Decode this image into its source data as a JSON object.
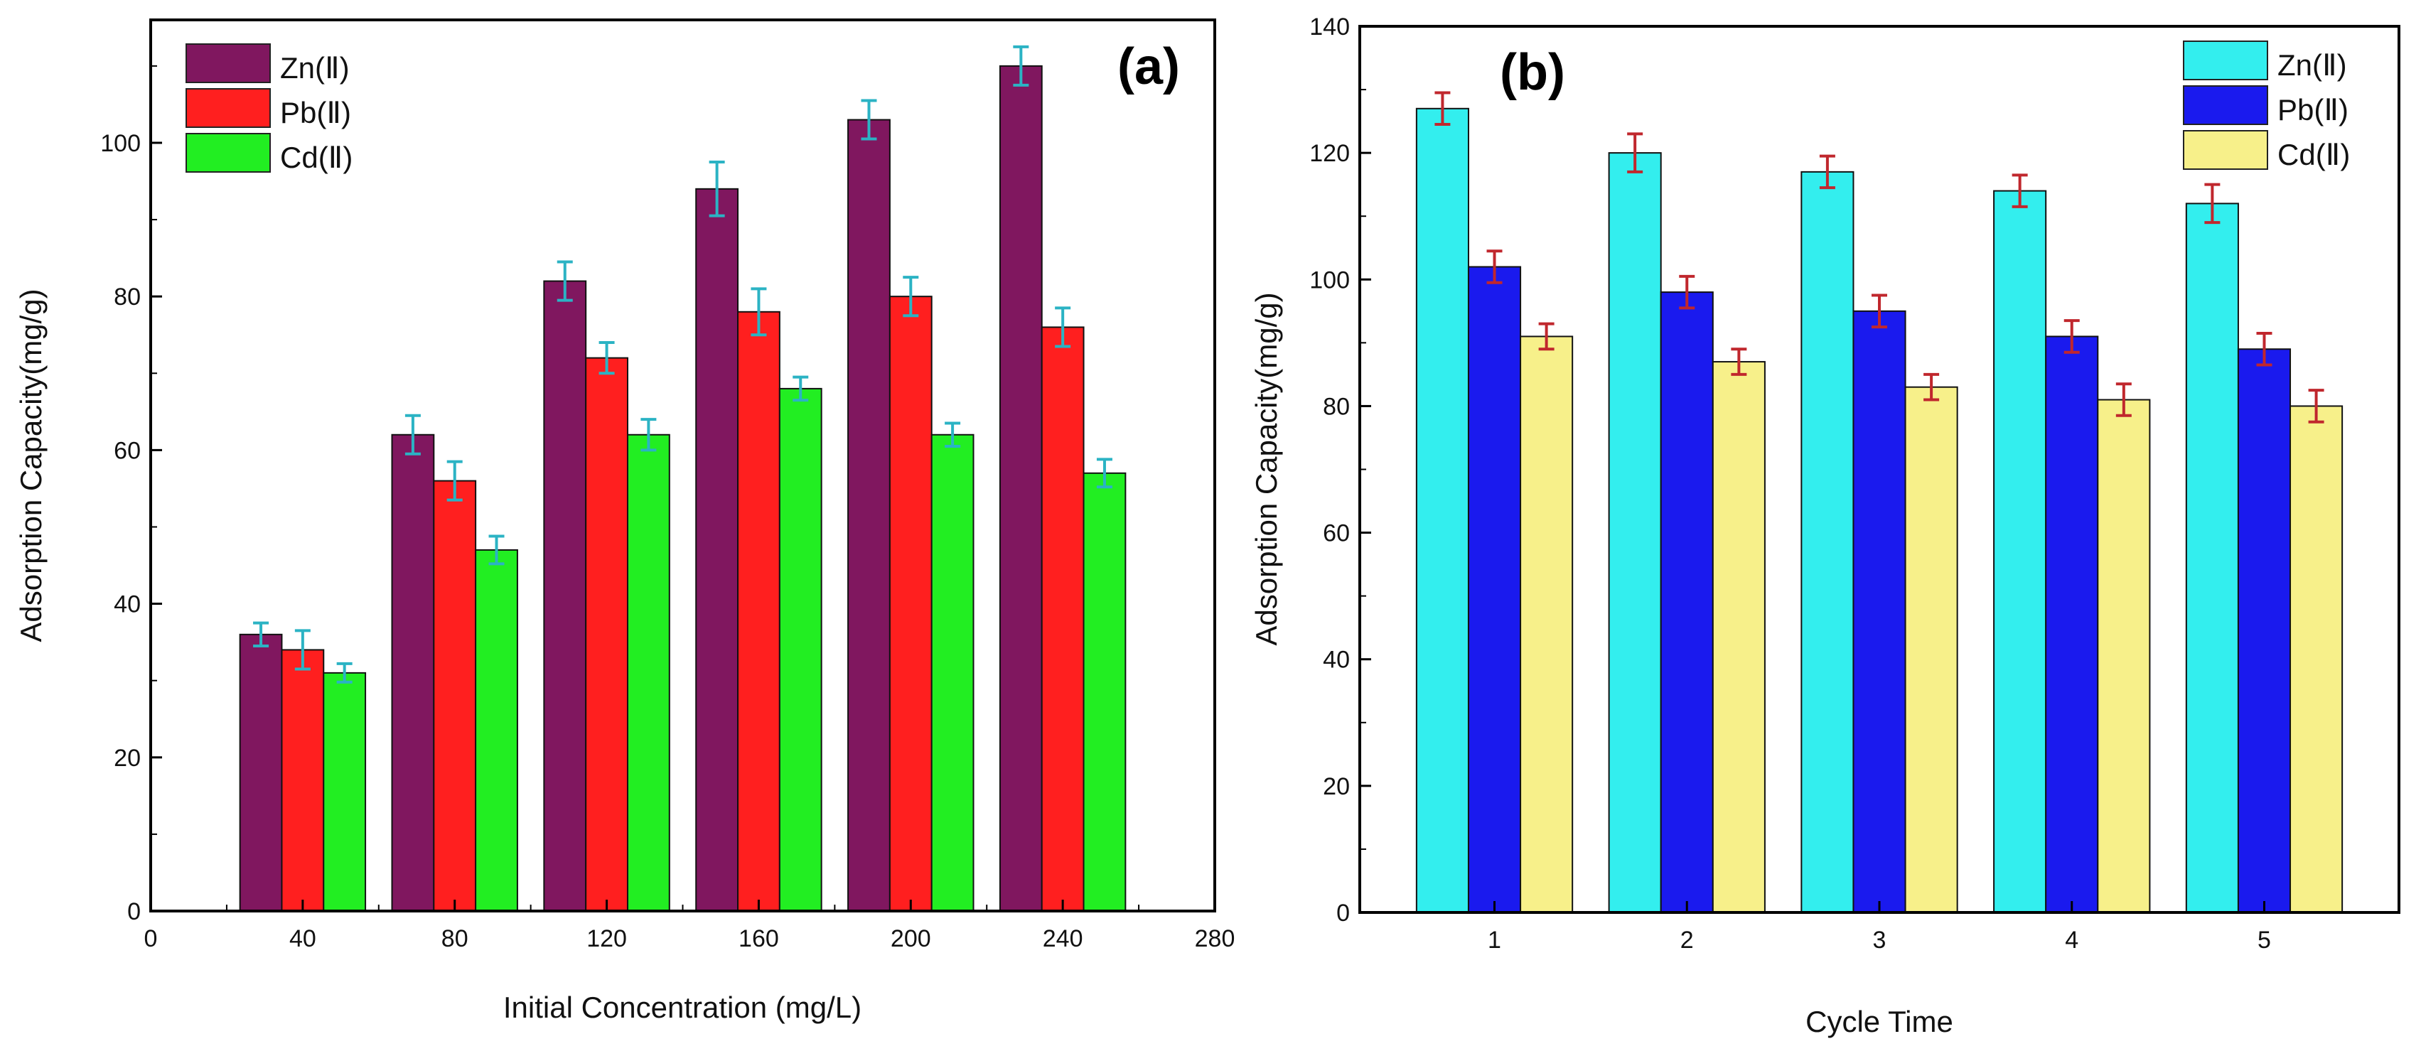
{
  "chart_data": [
    {
      "type": "bar",
      "panel_label": "(a)",
      "xlabel": "Initial Concentration (mg/L)",
      "ylabel": "Adsorption Capacity(mg/g)",
      "x_ticks": [
        "0",
        "40",
        "80",
        "120",
        "160",
        "200",
        "240",
        "280"
      ],
      "x_tick_values": [
        0,
        40,
        80,
        120,
        160,
        200,
        240,
        280
      ],
      "xlim": [
        0,
        280
      ],
      "y_ticks": [
        "0",
        "20",
        "40",
        "60",
        "80",
        "100"
      ],
      "y_tick_values": [
        0,
        20,
        40,
        60,
        80,
        100
      ],
      "ylim": [
        0,
        116
      ],
      "x": [
        40,
        80,
        120,
        160,
        200,
        240
      ],
      "group_width": 33,
      "legend_position": "top-left",
      "error_color": "#2bb3c4",
      "series": [
        {
          "name": "Zn(Ⅱ)",
          "color": "#80175f",
          "values": [
            36,
            62,
            82,
            94,
            103,
            110
          ],
          "errors": [
            1.5,
            2.5,
            2.5,
            3.5,
            2.5,
            2.5
          ]
        },
        {
          "name": "Pb(Ⅱ)",
          "color": "#ff1f1f",
          "values": [
            34,
            56,
            72,
            78,
            80,
            76
          ],
          "errors": [
            2.5,
            2.5,
            2.0,
            3.0,
            2.5,
            2.5
          ]
        },
        {
          "name": "Cd(Ⅱ)",
          "color": "#22ee22",
          "values": [
            31,
            47,
            62,
            68,
            62,
            57
          ],
          "errors": [
            1.2,
            1.8,
            2.0,
            1.5,
            1.5,
            1.8
          ]
        }
      ]
    },
    {
      "type": "bar",
      "panel_label": "(b)",
      "xlabel": "Cycle Time",
      "ylabel": "Adsorption Capacity(mg/g)",
      "categories": [
        "1",
        "2",
        "3",
        "4",
        "5"
      ],
      "y_ticks": [
        "0",
        "20",
        "40",
        "60",
        "80",
        "100",
        "120",
        "140"
      ],
      "y_tick_values": [
        0,
        20,
        40,
        60,
        80,
        100,
        120,
        140
      ],
      "ylim": [
        0,
        140
      ],
      "legend_position": "top-right",
      "error_color": "#c0272d",
      "series": [
        {
          "name": "Zn(Ⅱ)",
          "color": "#33eeee",
          "values": [
            127,
            120,
            117,
            114,
            112
          ],
          "errors": [
            2.5,
            3.0,
            2.5,
            2.5,
            3.0
          ]
        },
        {
          "name": "Pb(Ⅱ)",
          "color": "#1a1aee",
          "values": [
            102,
            98,
            95,
            91,
            89
          ],
          "errors": [
            2.5,
            2.5,
            2.5,
            2.5,
            2.5
          ]
        },
        {
          "name": "Cd(Ⅱ)",
          "color": "#f7f08a",
          "values": [
            91,
            87,
            83,
            81,
            80
          ],
          "errors": [
            2.0,
            2.0,
            2.0,
            2.5,
            2.5
          ]
        }
      ]
    }
  ]
}
